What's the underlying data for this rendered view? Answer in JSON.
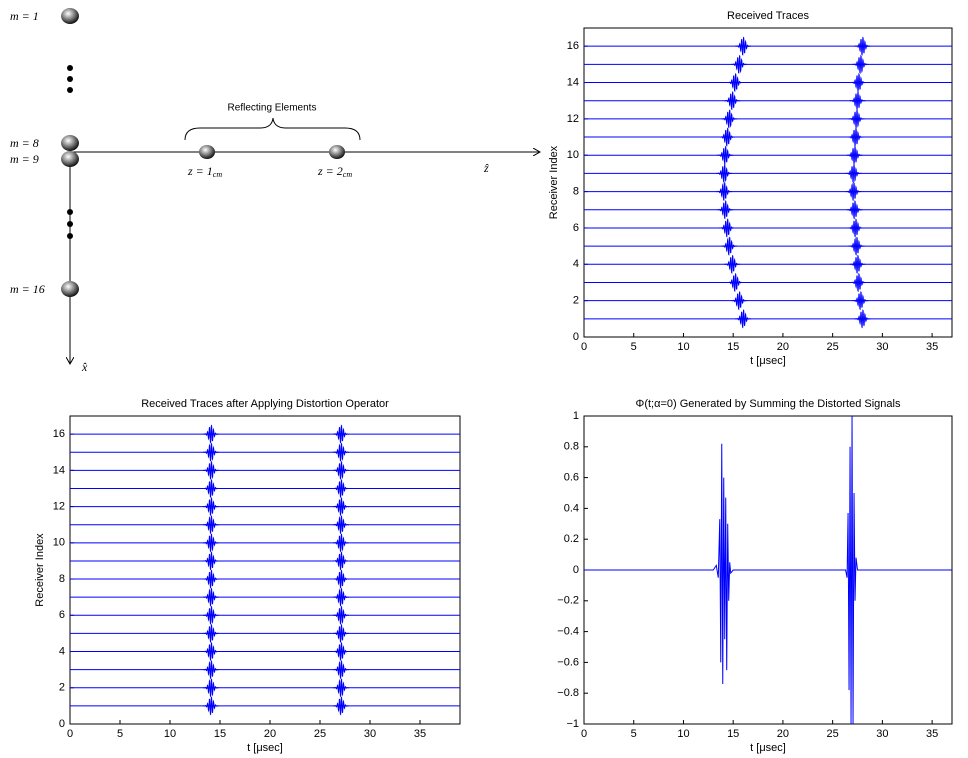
{
  "diagram": {
    "elements": [
      {
        "label": "m = 1"
      },
      {
        "label": "m = 8"
      },
      {
        "label": "m = 9"
      },
      {
        "label": "m = 16"
      }
    ],
    "reflectors_label": "Reflecting Elements",
    "reflectors": [
      {
        "label": "z = 1",
        "unit": "cm"
      },
      {
        "label": "z = 2",
        "unit": "cm"
      }
    ],
    "axes": {
      "z": "ẑ",
      "x": "x̂"
    }
  },
  "chart_data": [
    {
      "type": "traces",
      "title": "Received Traces",
      "xlabel": "t [μsec]",
      "ylabel": "Receiver Index",
      "xlim": [
        0,
        37
      ],
      "xticks": [
        0,
        5,
        10,
        15,
        20,
        25,
        30,
        35
      ],
      "ylim": [
        0,
        17
      ],
      "yticks": [
        0,
        2,
        4,
        6,
        8,
        10,
        12,
        14,
        16
      ],
      "color": "#0000ff",
      "traces": [
        1,
        2,
        3,
        4,
        5,
        6,
        7,
        8,
        9,
        10,
        11,
        12,
        13,
        14,
        15,
        16
      ],
      "arrivals": [
        [
          16.0,
          15.6,
          15.2,
          14.9,
          14.6,
          14.4,
          14.2,
          14.1,
          14.1,
          14.2,
          14.4,
          14.6,
          14.9,
          15.2,
          15.6,
          16.0
        ],
        [
          28.0,
          27.8,
          27.6,
          27.5,
          27.4,
          27.3,
          27.2,
          27.1,
          27.1,
          27.2,
          27.3,
          27.4,
          27.5,
          27.6,
          27.8,
          28.0
        ]
      ]
    },
    {
      "type": "traces",
      "title": "Received Traces after Applying Distortion Operator",
      "xlabel": "t [μsec]",
      "ylabel": "Receiver Index",
      "xlim": [
        0,
        39
      ],
      "xticks": [
        0,
        5,
        10,
        15,
        20,
        25,
        30,
        35
      ],
      "ylim": [
        0,
        17
      ],
      "yticks": [
        0,
        2,
        4,
        6,
        8,
        10,
        12,
        14,
        16
      ],
      "color": "#0000ff",
      "traces": [
        1,
        2,
        3,
        4,
        5,
        6,
        7,
        8,
        9,
        10,
        11,
        12,
        13,
        14,
        15,
        16
      ],
      "arrivals": [
        [
          14.1,
          14.1,
          14.1,
          14.1,
          14.1,
          14.1,
          14.1,
          14.1,
          14.1,
          14.1,
          14.1,
          14.1,
          14.1,
          14.1,
          14.1,
          14.1
        ],
        [
          27.1,
          27.1,
          27.1,
          27.1,
          27.1,
          27.1,
          27.1,
          27.1,
          27.1,
          27.1,
          27.1,
          27.1,
          27.1,
          27.1,
          27.1,
          27.1
        ]
      ]
    },
    {
      "type": "line",
      "title": "Φ(t;α=0) Generated by Summing the Distorted Signals",
      "xlabel": "t [μsec]",
      "xlim": [
        0,
        37
      ],
      "xticks": [
        0,
        5,
        10,
        15,
        20,
        25,
        30,
        35
      ],
      "ylim": [
        -1,
        1
      ],
      "yticks": [
        {
          "value": -1,
          "label": "−1"
        },
        {
          "value": -0.8,
          "label": "−0.8"
        },
        {
          "value": -0.6,
          "label": "−0.6"
        },
        {
          "value": -0.4,
          "label": "−0.4"
        },
        {
          "value": -0.2,
          "label": "−0.2"
        },
        0,
        0.2,
        0.4,
        0.6,
        0.8,
        1
      ],
      "color": "#0000ff",
      "x": [
        0,
        13.0,
        13.3,
        13.5,
        13.65,
        13.75,
        13.85,
        13.95,
        14.05,
        14.15,
        14.25,
        14.35,
        14.45,
        14.55,
        14.65,
        14.75,
        15.0,
        26.3,
        26.45,
        26.55,
        26.65,
        26.75,
        26.85,
        26.95,
        27.05,
        27.15,
        27.25,
        27.35,
        27.5,
        37
      ],
      "values": [
        0,
        0,
        0.03,
        -0.05,
        0.33,
        -0.6,
        0.82,
        -0.74,
        0.6,
        -0.45,
        0.47,
        -0.65,
        0.3,
        -0.2,
        0.05,
        -0.02,
        0,
        0,
        -0.05,
        0.37,
        -0.78,
        0.8,
        -1,
        1,
        -1,
        0.5,
        -0.2,
        0.08,
        0,
        0
      ]
    }
  ]
}
